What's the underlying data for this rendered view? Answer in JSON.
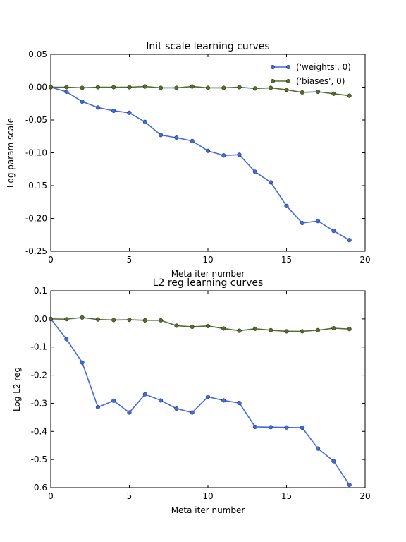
{
  "chart_data": [
    {
      "type": "line",
      "title": "Init scale learning curves",
      "xlabel": "Meta iter number",
      "ylabel": "Log param scale",
      "xlim": [
        0,
        20
      ],
      "ylim": [
        -0.25,
        0.05
      ],
      "xticks": [
        0,
        5,
        10,
        15,
        20
      ],
      "xtick_labels": [
        "0",
        "5",
        "10",
        "15",
        "20"
      ],
      "yticks": [
        0.05,
        0.0,
        -0.05,
        -0.1,
        -0.15,
        -0.2,
        -0.25
      ],
      "ytick_labels": [
        "0.05",
        "0.00",
        "-0.05",
        "-0.10",
        "-0.15",
        "-0.20",
        "-0.25"
      ],
      "grid": false,
      "legend": "top-right",
      "x": [
        0,
        1,
        2,
        3,
        4,
        5,
        6,
        7,
        8,
        9,
        10,
        11,
        12,
        13,
        14,
        15,
        16,
        17,
        18,
        19
      ],
      "series": [
        {
          "name": "('weights', 0)",
          "color": "#4169e1",
          "values": [
            0.0,
            -0.007,
            -0.022,
            -0.031,
            -0.036,
            -0.039,
            -0.053,
            -0.073,
            -0.077,
            -0.082,
            -0.097,
            -0.104,
            -0.103,
            -0.129,
            -0.145,
            -0.181,
            -0.207,
            -0.204,
            -0.219,
            -0.233
          ]
        },
        {
          "name": "('biases', 0)",
          "color": "#556b2f",
          "values": [
            0.0,
            0.0,
            -0.001,
            0.0,
            0.0,
            0.0,
            0.001,
            -0.001,
            -0.001,
            0.001,
            -0.001,
            -0.001,
            0.0,
            -0.002,
            -0.001,
            -0.004,
            -0.008,
            -0.007,
            -0.01,
            -0.013
          ]
        }
      ]
    },
    {
      "type": "line",
      "title": "L2 reg learning curves",
      "xlabel": "Meta iter number",
      "ylabel": "Log L2 reg",
      "xlim": [
        0,
        20
      ],
      "ylim": [
        -0.6,
        0.1
      ],
      "xticks": [
        0,
        5,
        10,
        15,
        20
      ],
      "xtick_labels": [
        "0",
        "5",
        "10",
        "15",
        "20"
      ],
      "yticks": [
        0.1,
        0.0,
        -0.1,
        -0.2,
        -0.3,
        -0.4,
        -0.5,
        -0.6
      ],
      "ytick_labels": [
        "0.1",
        "0.0",
        "-0.1",
        "-0.2",
        "-0.3",
        "-0.4",
        "-0.5",
        "-0.6"
      ],
      "grid": false,
      "x": [
        0,
        1,
        2,
        3,
        4,
        5,
        6,
        7,
        8,
        9,
        10,
        11,
        12,
        13,
        14,
        15,
        16,
        17,
        18,
        19
      ],
      "series": [
        {
          "color": "#4169e1",
          "values": [
            0.0,
            -0.072,
            -0.155,
            -0.314,
            -0.291,
            -0.333,
            -0.268,
            -0.29,
            -0.319,
            -0.333,
            -0.277,
            -0.29,
            -0.299,
            -0.384,
            -0.385,
            -0.386,
            -0.387,
            -0.461,
            -0.506,
            -0.59
          ]
        },
        {
          "color": "#556b2f",
          "values": [
            0.0,
            -0.001,
            0.005,
            -0.002,
            -0.004,
            -0.003,
            -0.005,
            -0.005,
            -0.024,
            -0.028,
            -0.025,
            -0.034,
            -0.042,
            -0.035,
            -0.04,
            -0.044,
            -0.044,
            -0.04,
            -0.033,
            -0.036
          ]
        }
      ]
    }
  ]
}
